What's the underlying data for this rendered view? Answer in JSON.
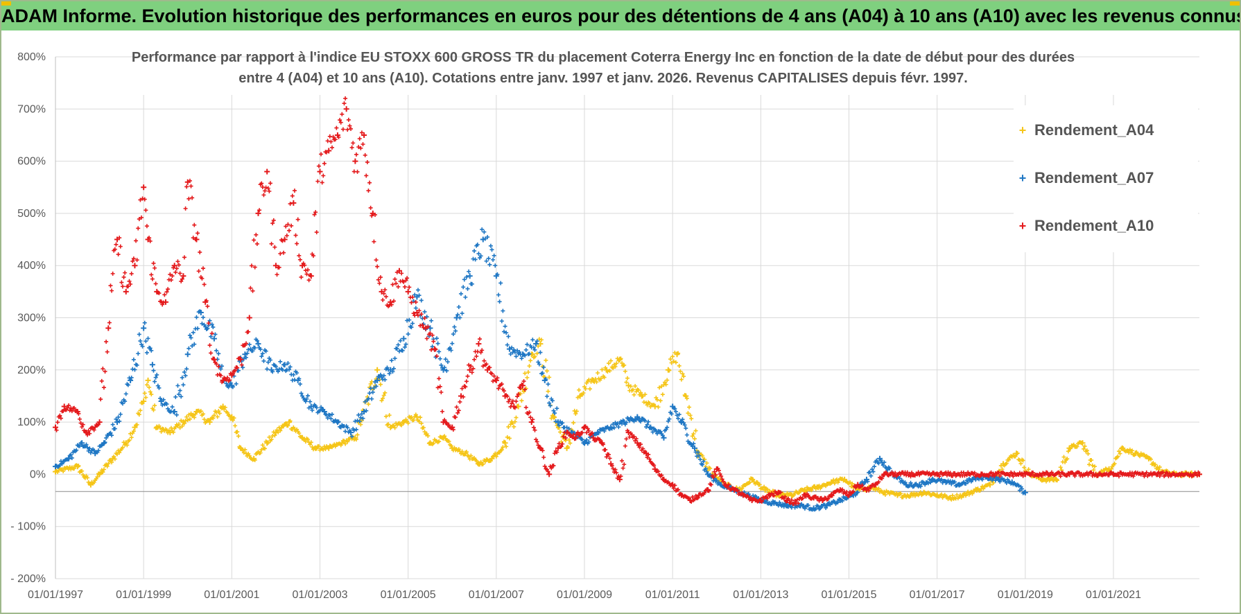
{
  "header": {
    "title": "ADAM Informe. Evolution historique des performances en euros pour des détentions de 4 ans (A04) à 10 ans (A10) avec les revenus connus capitalisés"
  },
  "colors": {
    "banner": "#7fd07f",
    "a04": "#f5c518",
    "a07": "#1f77c4",
    "a10": "#e41a1c"
  },
  "chart_data": {
    "type": "scatter",
    "title_line1": "Performance par rapport à l'indice EU STOXX 600 GROSS TR  du placement Coterra Energy Inc en fonction de la date de début pour des durées",
    "title_line2": "entre 4 (A04) et 10 ans (A10).  Cotations entre janv. 1997 et janv. 2026. Revenus CAPITALISES depuis févr. 1997.",
    "xlabel": "",
    "ylabel": "",
    "xlim": [
      1997.0,
      2022.95
    ],
    "ylim": [
      -200,
      800
    ],
    "y_ticks": [
      -200,
      -100,
      0,
      100,
      200,
      300,
      400,
      500,
      600,
      700,
      800
    ],
    "y_tick_labels": [
      "- 200%",
      "- 100%",
      "0%",
      "100%",
      "200%",
      "300%",
      "400%",
      "500%",
      "600%",
      "700%",
      "800%"
    ],
    "x_ticks": [
      1997,
      1999,
      2001,
      2003,
      2005,
      2007,
      2009,
      2011,
      2013,
      2015,
      2017,
      2019,
      2021
    ],
    "x_tick_labels": [
      "01/01/1997",
      "01/01/1999",
      "01/01/2001",
      "01/01/2003",
      "01/01/2005",
      "01/01/2007",
      "01/01/2009",
      "01/01/2011",
      "01/01/2013",
      "01/01/2015",
      "01/01/2017",
      "01/01/2019",
      "01/01/2021"
    ],
    "legend_position": "top-right",
    "series": [
      {
        "name": "Rendement_A04",
        "color": "#f5c518",
        "x": [
          1997.0,
          1997.5,
          1997.8,
          1998.0,
          1998.3,
          1998.6,
          1998.8,
          1999.0,
          1999.1,
          1999.3,
          1999.6,
          1999.9,
          2000.2,
          2000.5,
          2000.8,
          2001.0,
          2001.2,
          2001.5,
          2001.8,
          2002.0,
          2002.3,
          2002.6,
          2002.9,
          2003.2,
          2003.5,
          2003.8,
          2004.0,
          2004.3,
          2004.6,
          2004.9,
          2005.2,
          2005.5,
          2005.8,
          2006.0,
          2006.3,
          2006.6,
          2006.9,
          2007.2,
          2007.5,
          2007.8,
          2008.0,
          2008.3,
          2008.6,
          2008.9,
          2009.2,
          2009.5,
          2009.8,
          2010.0,
          2010.3,
          2010.6,
          2010.9,
          2011.1,
          2011.3,
          2011.6,
          2011.9,
          2012.2,
          2012.5,
          2012.8,
          2013.1,
          2013.4,
          2013.7,
          2014.0,
          2014.3,
          2014.6,
          2014.9,
          2015.2,
          2015.5,
          2015.8,
          2016.1,
          2016.4,
          2016.7,
          2017.0,
          2017.3,
          2017.6,
          2017.9,
          2018.2,
          2018.5,
          2018.8,
          2019.1,
          2019.4,
          2019.7,
          2020.0,
          2020.3,
          2020.6,
          2020.9,
          2021.2,
          2021.5,
          2021.8,
          2022.1,
          2022.4,
          2022.7,
          2022.95
        ],
        "y": [
          5,
          15,
          -20,
          0,
          30,
          60,
          90,
          140,
          180,
          90,
          80,
          100,
          120,
          100,
          130,
          110,
          50,
          30,
          60,
          80,
          100,
          70,
          50,
          50,
          60,
          70,
          120,
          200,
          90,
          100,
          110,
          60,
          70,
          50,
          40,
          20,
          30,
          60,
          130,
          230,
          250,
          110,
          50,
          150,
          180,
          200,
          220,
          170,
          150,
          130,
          200,
          230,
          150,
          40,
          0,
          -20,
          -30,
          -10,
          -30,
          -40,
          -40,
          -30,
          -25,
          -15,
          -10,
          -30,
          -25,
          -35,
          -40,
          -40,
          -35,
          -40,
          -45,
          -40,
          -30,
          -20,
          20,
          40,
          0,
          -10,
          -10,
          50,
          60,
          0,
          10,
          50,
          40,
          30,
          5,
          0,
          0,
          0
        ]
      },
      {
        "name": "Rendement_A07",
        "color": "#1f77c4",
        "x": [
          1997.0,
          1997.3,
          1997.6,
          1997.9,
          1998.1,
          1998.4,
          1998.7,
          1999.0,
          1999.2,
          1999.4,
          1999.7,
          2000.0,
          2000.3,
          2000.6,
          2000.8,
          2001.0,
          2001.3,
          2001.6,
          2001.9,
          2002.2,
          2002.5,
          2002.8,
          2003.1,
          2003.4,
          2003.7,
          2004.0,
          2004.3,
          2004.6,
          2004.9,
          2005.2,
          2005.5,
          2005.8,
          2006.1,
          2006.4,
          2006.7,
          2007.0,
          2007.3,
          2007.6,
          2007.9,
          2008.1,
          2008.4,
          2008.7,
          2009.0,
          2009.3,
          2009.6,
          2009.9,
          2010.2,
          2010.5,
          2010.8,
          2011.0,
          2011.2,
          2011.5,
          2011.8,
          2012.1,
          2012.4,
          2012.7,
          2013.0,
          2013.3,
          2013.6,
          2013.9,
          2014.2,
          2014.5,
          2014.8,
          2015.1,
          2015.4,
          2015.7,
          2016.0,
          2016.3,
          2016.6,
          2016.9,
          2017.2,
          2017.5,
          2017.8,
          2018.1,
          2018.4,
          2018.7,
          2019.0
        ],
        "y": [
          15,
          30,
          60,
          40,
          60,
          100,
          180,
          280,
          210,
          140,
          120,
          230,
          310,
          260,
          180,
          170,
          230,
          250,
          200,
          210,
          180,
          130,
          120,
          100,
          80,
          120,
          180,
          200,
          260,
          340,
          280,
          200,
          300,
          380,
          450,
          380,
          240,
          230,
          250,
          180,
          100,
          80,
          60,
          80,
          90,
          100,
          110,
          90,
          70,
          130,
          100,
          50,
          0,
          -20,
          -30,
          -40,
          -50,
          -55,
          -60,
          -60,
          -65,
          -60,
          -50,
          -40,
          -10,
          30,
          0,
          -20,
          -20,
          -10,
          -15,
          -20,
          -10,
          -5,
          -10,
          -15,
          -35
        ]
      },
      {
        "name": "Rendement_A10",
        "color": "#e41a1c",
        "x": [
          1997.0,
          1997.2,
          1997.5,
          1997.7,
          1998.0,
          1998.2,
          1998.4,
          1998.6,
          1998.8,
          1999.0,
          1999.1,
          1999.3,
          1999.5,
          1999.7,
          1999.9,
          2000.0,
          2000.2,
          2000.4,
          2000.6,
          2000.8,
          2001.0,
          2001.2,
          2001.4,
          2001.6,
          2001.8,
          2002.0,
          2002.2,
          2002.4,
          2002.6,
          2002.8,
          2003.0,
          2003.2,
          2003.4,
          2003.6,
          2003.8,
          2004.0,
          2004.2,
          2004.4,
          2004.6,
          2004.8,
          2005.0,
          2005.2,
          2005.4,
          2005.6,
          2005.8,
          2006.0,
          2006.2,
          2006.4,
          2006.6,
          2006.8,
          2007.0,
          2007.2,
          2007.4,
          2007.6,
          2007.8,
          2008.0,
          2008.2,
          2008.4,
          2008.6,
          2008.8,
          2009.0,
          2009.2,
          2009.4,
          2009.6,
          2009.8,
          2010.0,
          2010.2,
          2010.4,
          2010.6,
          2010.8,
          2011.0,
          2011.2,
          2011.4,
          2011.6,
          2011.8,
          2012.0,
          2012.2,
          2012.4,
          2012.6,
          2012.8,
          2013.0,
          2013.2,
          2013.4,
          2013.6,
          2013.8,
          2014.0,
          2014.2,
          2014.4,
          2014.6,
          2014.8,
          2015.0,
          2015.2,
          2015.4,
          2015.6,
          2015.8,
          2016.0,
          2017.0,
          2018.0,
          2019.0,
          2020.0,
          2021.0,
          2022.0,
          2022.95
        ],
        "y": [
          90,
          130,
          120,
          80,
          100,
          280,
          450,
          350,
          400,
          550,
          450,
          350,
          330,
          400,
          380,
          560,
          450,
          330,
          220,
          180,
          190,
          220,
          300,
          500,
          580,
          400,
          450,
          520,
          400,
          380,
          580,
          620,
          650,
          700,
          600,
          650,
          500,
          350,
          330,
          390,
          350,
          310,
          280,
          240,
          100,
          90,
          150,
          200,
          250,
          200,
          180,
          150,
          130,
          170,
          100,
          50,
          0,
          50,
          80,
          70,
          90,
          70,
          60,
          20,
          -10,
          80,
          60,
          40,
          10,
          -10,
          -20,
          -40,
          -50,
          -40,
          -30,
          10,
          -20,
          -30,
          -40,
          -50,
          -50,
          -40,
          -35,
          -50,
          -55,
          -40,
          -45,
          -50,
          -40,
          -30,
          -40,
          -20,
          -30,
          -20,
          0,
          0,
          0,
          0,
          0,
          0,
          0,
          0,
          0
        ]
      }
    ]
  }
}
